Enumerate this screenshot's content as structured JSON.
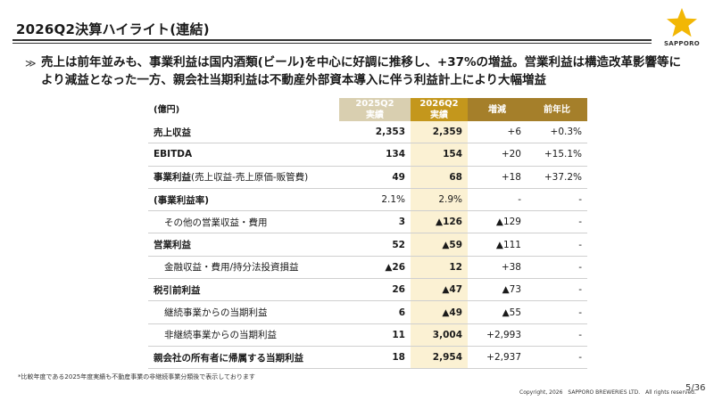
{
  "header": {
    "title": "2026Q2決算ハイライト(連結)",
    "logo_text": "SAPPORO",
    "logo_color": "#f2b705"
  },
  "summary": {
    "bullet": "≫",
    "text": "売上は前年並みも、事業利益は国内酒類(ビール)を中心に好調に推移し、+37%の増益。営業利益は構造改革影響等により減益となった一方、親会社当期利益は不動産外部資本導入に伴う利益計上により大幅増益"
  },
  "table": {
    "unit_label": "(億円)",
    "col_prev": "2025Q2",
    "col_prev_sub": "実績",
    "col_cur": "2026Q2",
    "col_cur_sub": "実績",
    "col_change": "増減",
    "col_yoy": "前年比",
    "rows": [
      {
        "label": "売上収益",
        "prev": "2,353",
        "cur": "2,359",
        "change": "+6",
        "yoy": "+0.3%"
      },
      {
        "label": "EBITDA",
        "prev": "134",
        "cur": "154",
        "change": "+20",
        "yoy": "+15.1%"
      },
      {
        "label": "事業利益",
        "label_note": "(売上収益-売上原価-販管費)",
        "prev": "49",
        "cur": "68",
        "change": "+18",
        "yoy": "+37.2%"
      },
      {
        "label": "(事業利益率)",
        "prev": "2.1%",
        "cur": "2.9%",
        "change": "-",
        "yoy": "-"
      },
      {
        "label": "その他の営業収益・費用",
        "prev": "3",
        "cur": "▲126",
        "change": "▲129",
        "yoy": "-"
      },
      {
        "label": "営業利益",
        "prev": "52",
        "cur": "▲59",
        "change": "▲111",
        "yoy": "-"
      },
      {
        "label": "金融収益・費用/持分法投資損益",
        "prev": "▲26",
        "cur": "12",
        "change": "+38",
        "yoy": "-"
      },
      {
        "label": "税引前利益",
        "prev": "26",
        "cur": "▲47",
        "change": "▲73",
        "yoy": "-"
      },
      {
        "label": "継続事業からの当期利益",
        "prev": "6",
        "cur": "▲49",
        "change": "▲55",
        "yoy": "-"
      },
      {
        "label": "非継続事業からの当期利益",
        "prev": "11",
        "cur": "3,004",
        "change": "+2,993",
        "yoy": "-"
      },
      {
        "label": "親会社の所有者に帰属する当期利益",
        "prev": "18",
        "cur": "2,954",
        "change": "+2,937",
        "yoy": "-"
      }
    ]
  },
  "footnote": "*比較年度である2025年度実績も不動産事業の非継続事業分類後で表示しております",
  "copyright": "Copyright, 2026　SAPPORO BREWERIES LTD.　All rights reserved.",
  "page_number": "5/36"
}
